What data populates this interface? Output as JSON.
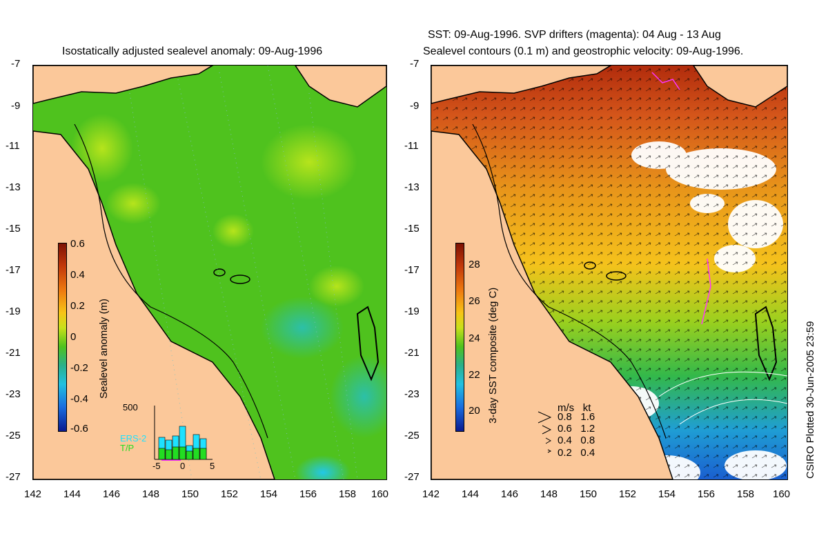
{
  "left_panel": {
    "title": "Isostatically adjusted sealevel anomaly: 09-Aug-1996",
    "colorbar": {
      "title": "Sealevel anomaly (m)",
      "ticks": [
        "0.6",
        "0.4",
        "0.2",
        "0",
        "-0.2",
        "-0.4",
        "-0.6"
      ]
    },
    "histogram": {
      "ymax_label": "500",
      "xticks": [
        "-5",
        "0",
        "5"
      ],
      "series": [
        {
          "name": "ERS-2",
          "color": "#1ee1ff"
        },
        {
          "name": "T/P",
          "color": "#22dd22"
        }
      ]
    }
  },
  "right_panel": {
    "title_line1": "SST: 09-Aug-1996. SVP drifters (magenta): 04 Aug - 13 Aug",
    "title_line2": "Sealevel contours (0.1 m) and geostrophic velocity: 09-Aug-1996.",
    "colorbar": {
      "title": "3-day SST composite (deg C)",
      "ticks": [
        "28",
        "26",
        "24",
        "22",
        "20"
      ]
    },
    "velocity_legend": {
      "header_ms": "m/s",
      "header_kt": "kt",
      "rows": [
        {
          "ms": "0.8",
          "kt": "1.6"
        },
        {
          "ms": "0.6",
          "kt": "1.2"
        },
        {
          "ms": "0.4",
          "kt": "0.8"
        },
        {
          "ms": "0.2",
          "kt": "0.4"
        }
      ]
    }
  },
  "axes": {
    "y_ticks": [
      "-7",
      "-9",
      "-11",
      "-13",
      "-15",
      "-17",
      "-19",
      "-21",
      "-23",
      "-25",
      "-27"
    ],
    "x_ticks": [
      "142",
      "144",
      "146",
      "148",
      "150",
      "152",
      "154",
      "156",
      "158",
      "160"
    ]
  },
  "credit": "CSIRO Plotted 30-Jun-2005 23:59",
  "colors": {
    "land": "#fbc89a",
    "sla_green": "#4fc21e",
    "sst_orange": "#e8951a",
    "sst_red": "#b12b0c",
    "cloud": "#ffffff"
  }
}
